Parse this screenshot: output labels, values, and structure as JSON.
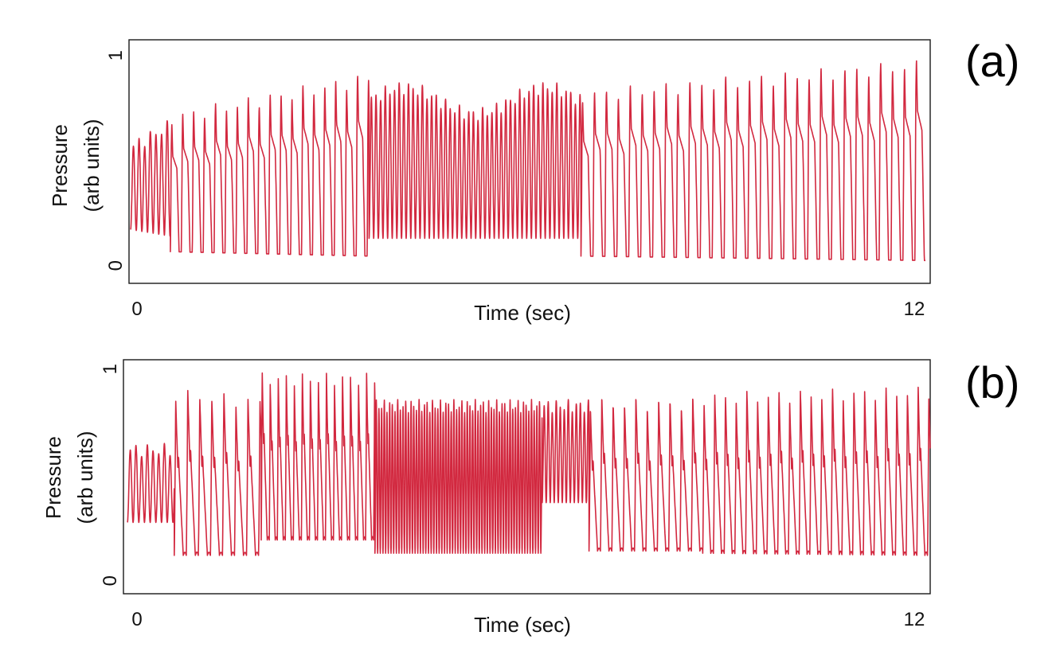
{
  "chart_data": [
    {
      "type": "line",
      "panel": "(a)",
      "xlabel": "Time (sec)",
      "ylabel_line1": "Pressure",
      "ylabel_line2": "(arb units)",
      "xlim": [
        0,
        12
      ],
      "ylim": [
        0,
        1
      ],
      "x_tick_labels": [
        "0",
        "12"
      ],
      "y_tick_labels": [
        "0",
        "1"
      ],
      "color": "#d2283f",
      "series": [
        {
          "segments": [
            {
              "t0": 0.0,
              "t1": 0.6,
              "period": 0.085,
              "base_start": 0.2,
              "base_end": 0.17,
              "peak_start": 0.57,
              "peak_end": 0.67,
              "style": "fast"
            },
            {
              "t0": 0.6,
              "t1": 3.6,
              "period": 0.165,
              "base_start": 0.1,
              "base_end": 0.08,
              "peak_start": 0.7,
              "peak_end": 0.88,
              "style": "slow"
            },
            {
              "t0": 3.6,
              "t1": 6.8,
              "period": 0.07,
              "base_start": 0.16,
              "base_end": 0.16,
              "peak_start": 0.78,
              "peak_end": 0.78,
              "style": "fast",
              "wobble": 0.1
            },
            {
              "t0": 6.8,
              "t1": 12.0,
              "period": 0.18,
              "base_start": 0.08,
              "base_end": 0.06,
              "peak_start": 0.8,
              "peak_end": 0.94,
              "style": "slow"
            }
          ]
        }
      ]
    },
    {
      "type": "line",
      "panel": "(b)",
      "xlabel": "Time (sec)",
      "ylabel_line1": "Pressure",
      "ylabel_line2": "(arb units)",
      "xlim": [
        0,
        12
      ],
      "ylim": [
        0,
        1
      ],
      "x_tick_labels": [
        "0",
        "12"
      ],
      "y_tick_labels": [
        "0",
        "1"
      ],
      "color": "#d2283f",
      "series": [
        {
          "segments": [
            {
              "t0": 0.0,
              "t1": 0.7,
              "period": 0.085,
              "base_start": 0.31,
              "base_end": 0.31,
              "peak_start": 0.64,
              "peak_end": 0.64,
              "style": "fast"
            },
            {
              "t0": 0.7,
              "t1": 2.0,
              "period": 0.18,
              "base_start": 0.16,
              "base_end": 0.16,
              "peak_start": 0.9,
              "peak_end": 0.86,
              "style": "double"
            },
            {
              "t0": 2.0,
              "t1": 3.7,
              "period": 0.12,
              "base_start": 0.23,
              "base_end": 0.23,
              "peak_start": 0.97,
              "peak_end": 0.97,
              "style": "double"
            },
            {
              "t0": 3.7,
              "t1": 6.2,
              "period": 0.04,
              "base_start": 0.17,
              "base_end": 0.17,
              "peak_start": 0.84,
              "peak_end": 0.84,
              "style": "fast"
            },
            {
              "t0": 6.2,
              "t1": 6.9,
              "period": 0.06,
              "base_start": 0.4,
              "base_end": 0.4,
              "peak_start": 0.84,
              "peak_end": 0.84,
              "style": "fast"
            },
            {
              "t0": 6.9,
              "t1": 8.6,
              "period": 0.17,
              "base_start": 0.18,
              "base_end": 0.18,
              "peak_start": 0.86,
              "peak_end": 0.86,
              "style": "double"
            },
            {
              "t0": 8.6,
              "t1": 12.0,
              "period": 0.16,
              "base_start": 0.17,
              "base_end": 0.16,
              "peak_start": 0.88,
              "peak_end": 0.91,
              "style": "double"
            }
          ]
        }
      ]
    }
  ]
}
